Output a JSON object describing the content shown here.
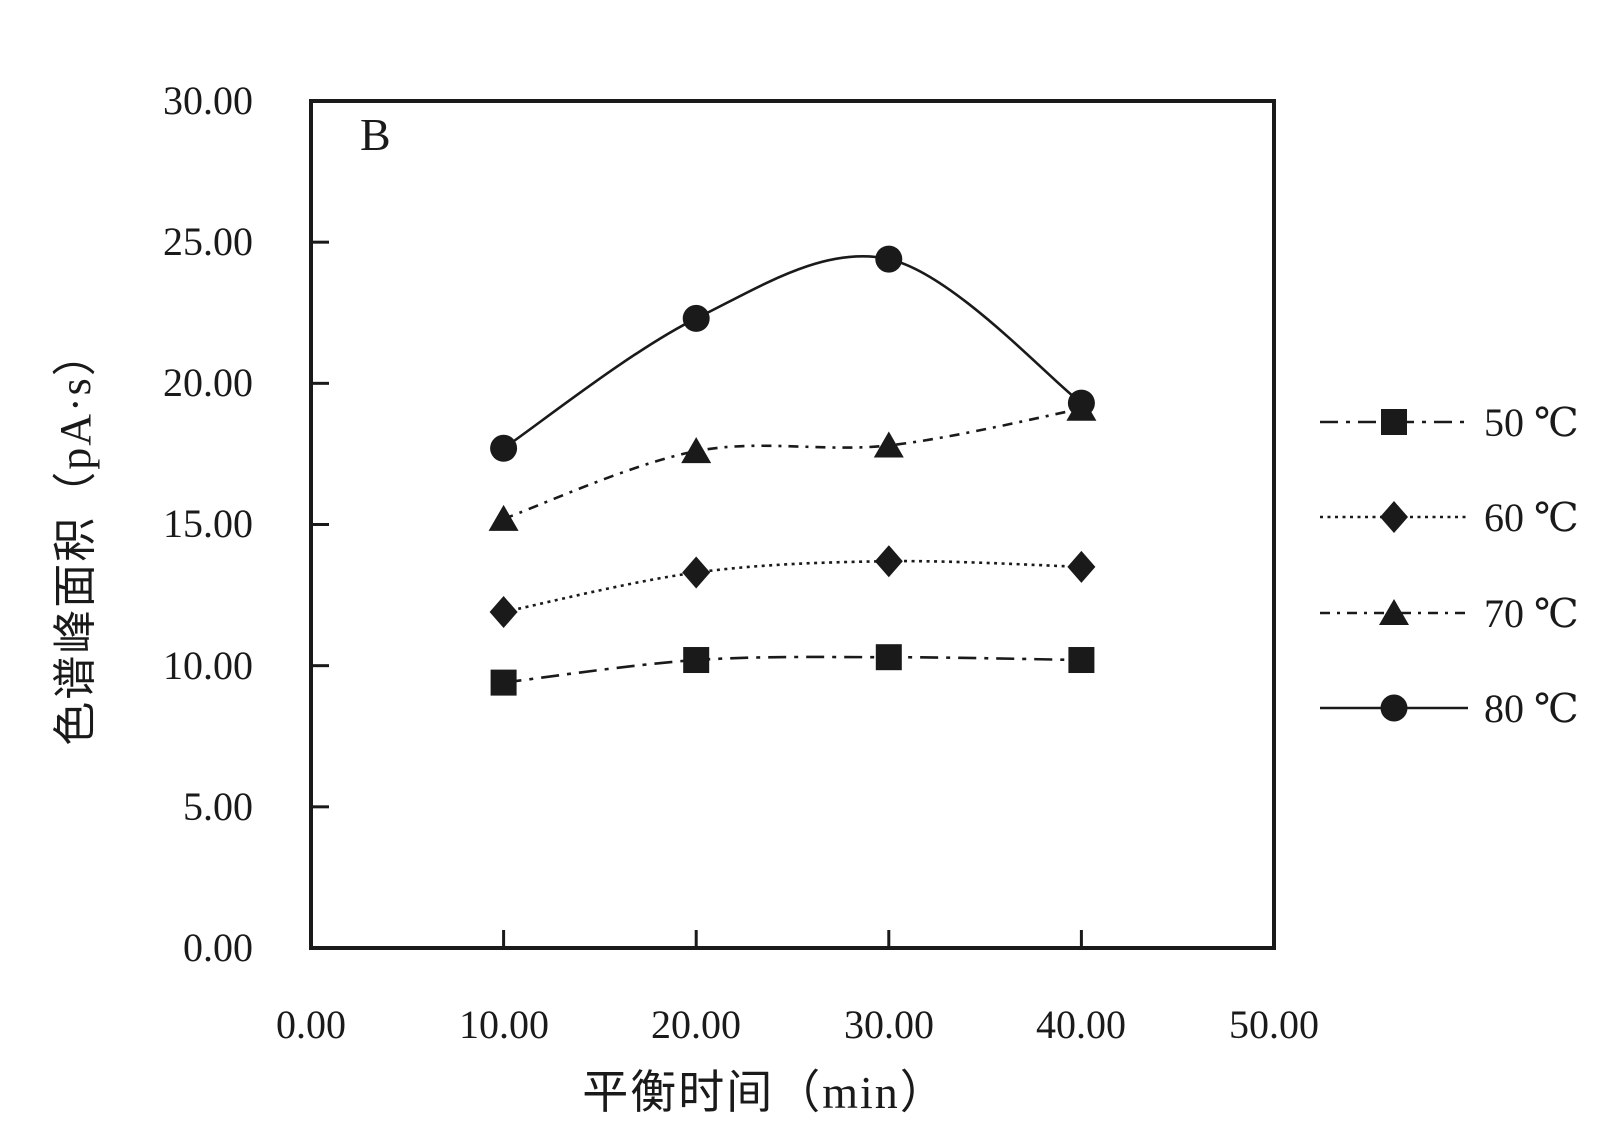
{
  "chart_data": {
    "type": "line",
    "panel_label": "B",
    "x": [
      10,
      20,
      30,
      40
    ],
    "x_axis": {
      "title": "平衡时间（min）",
      "min": 0,
      "max": 50,
      "step": 10,
      "tick_labels": [
        "0.00",
        "10.00",
        "20.00",
        "30.00",
        "40.00",
        "50.00"
      ]
    },
    "y_axis": {
      "title": "色谱峰面积（pA·s）",
      "min": 0,
      "max": 30,
      "step": 5,
      "tick_labels": [
        "30.00",
        "25.00",
        "20.00",
        "15.00",
        "10.00",
        "5.00",
        "0.00"
      ]
    },
    "series": [
      {
        "name": "50 ℃",
        "marker": "square",
        "line_style": "dash-dot",
        "values": [
          9.4,
          10.2,
          10.3,
          10.2
        ]
      },
      {
        "name": "60 ℃",
        "marker": "diamond",
        "line_style": "dotted",
        "values": [
          11.9,
          13.3,
          13.7,
          13.5
        ]
      },
      {
        "name": "70 ℃",
        "marker": "triangle",
        "line_style": "dash-dot-fine",
        "values": [
          15.2,
          17.6,
          17.8,
          19.1
        ]
      },
      {
        "name": "80 ℃",
        "marker": "circle",
        "line_style": "solid",
        "values": [
          17.7,
          22.3,
          24.4,
          19.3
        ]
      }
    ],
    "legend_position": "right-outside",
    "grid": "off",
    "colors": {
      "ink": "#1a1a1a",
      "background": "#ffffff"
    }
  }
}
